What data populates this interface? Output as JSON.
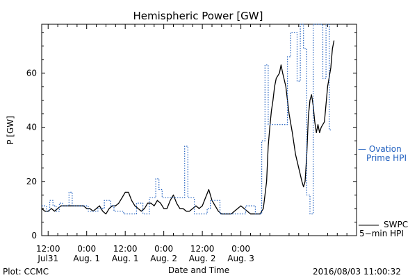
{
  "chart_data": {
    "type": "line",
    "title": "Hemispheric Power [GW]",
    "ylabel": "P [GW]",
    "xlabel": "Date and Time",
    "ylim": [
      0,
      78
    ],
    "xlim_hours": [
      -2,
      96
    ],
    "yticks": [
      0,
      20,
      40,
      60
    ],
    "xticks": [
      {
        "hour": 0,
        "line1": "12:00",
        "line2": "Jul31"
      },
      {
        "hour": 12,
        "line1": "0:00",
        "line2": "Aug. 1"
      },
      {
        "hour": 24,
        "line1": "12:00",
        "line2": "Aug. 1"
      },
      {
        "hour": 36,
        "line1": "0:00",
        "line2": "Aug. 2"
      },
      {
        "hour": 48,
        "line1": "12:00",
        "line2": "Aug. 2"
      },
      {
        "hour": 60,
        "line1": "0:00",
        "line2": "Aug. 3"
      }
    ],
    "series": [
      {
        "name": "SWPC 5-min HPI",
        "style": "solid",
        "color": "#000000",
        "points": [
          [
            -2,
            10
          ],
          [
            -1,
            9
          ],
          [
            0,
            9
          ],
          [
            1,
            10
          ],
          [
            2,
            9
          ],
          [
            3,
            10
          ],
          [
            4,
            11
          ],
          [
            5,
            11
          ],
          [
            6,
            11
          ],
          [
            7,
            11
          ],
          [
            8,
            11
          ],
          [
            9,
            11
          ],
          [
            10,
            11
          ],
          [
            11,
            11
          ],
          [
            12,
            10
          ],
          [
            13,
            10
          ],
          [
            14,
            9
          ],
          [
            15,
            10
          ],
          [
            16,
            11
          ],
          [
            17,
            9
          ],
          [
            18,
            8
          ],
          [
            19,
            10
          ],
          [
            20,
            11
          ],
          [
            21,
            11
          ],
          [
            22,
            12
          ],
          [
            23,
            14
          ],
          [
            24,
            16
          ],
          [
            25,
            16
          ],
          [
            26,
            13
          ],
          [
            27,
            11
          ],
          [
            28,
            10
          ],
          [
            29,
            9
          ],
          [
            30,
            10
          ],
          [
            31,
            12
          ],
          [
            32,
            12
          ],
          [
            33,
            11
          ],
          [
            34,
            13
          ],
          [
            35,
            12
          ],
          [
            36,
            10
          ],
          [
            37,
            10
          ],
          [
            38,
            13
          ],
          [
            39,
            15
          ],
          [
            40,
            12
          ],
          [
            41,
            10
          ],
          [
            42,
            10
          ],
          [
            43,
            9
          ],
          [
            44,
            9
          ],
          [
            45,
            10
          ],
          [
            46,
            11
          ],
          [
            47,
            10
          ],
          [
            48,
            11
          ],
          [
            49,
            14
          ],
          [
            50,
            17
          ],
          [
            51,
            13
          ],
          [
            52,
            11
          ],
          [
            53,
            9
          ],
          [
            54,
            8
          ],
          [
            55,
            8
          ],
          [
            56,
            8
          ],
          [
            57,
            8
          ],
          [
            58,
            9
          ],
          [
            59,
            10
          ],
          [
            60,
            11
          ],
          [
            61,
            10
          ],
          [
            62,
            9
          ],
          [
            63,
            8
          ],
          [
            64,
            8
          ],
          [
            65,
            8
          ],
          [
            66,
            8
          ],
          [
            67,
            10
          ],
          [
            68,
            20
          ],
          [
            68.5,
            33
          ],
          [
            69,
            40
          ],
          [
            69.5,
            46
          ],
          [
            70,
            50
          ],
          [
            70.5,
            55
          ],
          [
            71,
            58
          ],
          [
            72,
            60
          ],
          [
            72.5,
            63
          ],
          [
            73,
            60
          ],
          [
            74,
            55
          ],
          [
            74.5,
            50
          ],
          [
            75,
            45
          ],
          [
            76,
            38
          ],
          [
            77,
            30
          ],
          [
            78,
            25
          ],
          [
            79,
            20
          ],
          [
            79.5,
            18
          ],
          [
            80,
            20
          ],
          [
            80.5,
            30
          ],
          [
            81,
            44
          ],
          [
            81.5,
            50
          ],
          [
            82,
            52
          ],
          [
            82.5,
            48
          ],
          [
            83,
            42
          ],
          [
            83.5,
            38
          ],
          [
            84,
            41
          ],
          [
            84.5,
            38
          ],
          [
            85,
            40
          ],
          [
            86,
            42
          ],
          [
            87,
            55
          ],
          [
            88,
            62
          ],
          [
            88.5,
            69
          ],
          [
            89,
            72
          ]
        ]
      },
      {
        "name": "Ovation Prime HPI",
        "style": "dotted",
        "color": "#1f5fbf",
        "points": [
          [
            -2,
            11
          ],
          [
            -0.5,
            11
          ],
          [
            -0.5,
            9
          ],
          [
            0.5,
            9
          ],
          [
            0.5,
            13
          ],
          [
            1.5,
            13
          ],
          [
            1.5,
            11
          ],
          [
            2.5,
            11
          ],
          [
            2.5,
            9
          ],
          [
            3.5,
            9
          ],
          [
            3.5,
            12
          ],
          [
            4.5,
            12
          ],
          [
            4.5,
            11
          ],
          [
            6.5,
            11
          ],
          [
            6.5,
            16
          ],
          [
            7.5,
            16
          ],
          [
            7.5,
            11
          ],
          [
            12.5,
            11
          ],
          [
            12.5,
            9
          ],
          [
            15.5,
            9
          ],
          [
            15.5,
            10
          ],
          [
            17.5,
            10
          ],
          [
            17.5,
            13
          ],
          [
            19.5,
            13
          ],
          [
            19.5,
            11
          ],
          [
            20.5,
            11
          ],
          [
            20.5,
            9
          ],
          [
            23.5,
            9
          ],
          [
            23.5,
            8
          ],
          [
            27.5,
            8
          ],
          [
            27.5,
            12
          ],
          [
            29.5,
            12
          ],
          [
            29.5,
            8
          ],
          [
            31.5,
            8
          ],
          [
            31.5,
            14
          ],
          [
            33.5,
            14
          ],
          [
            33.5,
            21
          ],
          [
            34.5,
            21
          ],
          [
            34.5,
            17
          ],
          [
            35.5,
            17
          ],
          [
            35.5,
            14
          ],
          [
            42.5,
            14
          ],
          [
            42.5,
            33
          ],
          [
            43.5,
            33
          ],
          [
            43.5,
            14
          ],
          [
            45.5,
            14
          ],
          [
            45.5,
            8
          ],
          [
            49.5,
            8
          ],
          [
            49.5,
            10
          ],
          [
            50.5,
            10
          ],
          [
            50.5,
            13
          ],
          [
            53.5,
            13
          ],
          [
            53.5,
            8
          ],
          [
            61.5,
            8
          ],
          [
            61.5,
            11
          ],
          [
            64.5,
            11
          ],
          [
            64.5,
            8
          ],
          [
            66.5,
            8
          ],
          [
            66.5,
            35
          ],
          [
            67.5,
            35
          ],
          [
            67.5,
            63
          ],
          [
            68.5,
            63
          ],
          [
            68.5,
            41
          ],
          [
            74.5,
            41
          ],
          [
            74.5,
            66
          ],
          [
            75.5,
            66
          ],
          [
            75.5,
            75
          ],
          [
            77.5,
            75
          ],
          [
            77.5,
            57
          ],
          [
            78.5,
            57
          ],
          [
            78.5,
            78
          ],
          [
            79.5,
            78
          ],
          [
            79.5,
            69
          ],
          [
            80.5,
            69
          ],
          [
            80.5,
            15
          ],
          [
            81.5,
            15
          ],
          [
            81.5,
            8
          ],
          [
            82.5,
            8
          ],
          [
            82.5,
            78
          ],
          [
            85.5,
            78
          ],
          [
            85.5,
            58
          ],
          [
            86.5,
            58
          ],
          [
            86.5,
            78
          ],
          [
            87.5,
            78
          ],
          [
            87.5,
            39
          ],
          [
            88,
            39
          ]
        ]
      }
    ],
    "legend": [
      {
        "text": "— Ovation",
        "color": "#1f5fbf"
      },
      {
        "text": "Prime HPI",
        "color": "#1f5fbf"
      },
      {
        "text": "SWPC",
        "color": "#000000"
      },
      {
        "text": "5−min HPI",
        "color": "#000000"
      }
    ]
  },
  "footer": {
    "left": "Plot: CCMC",
    "right": "2016/08/03 11:00:32"
  }
}
